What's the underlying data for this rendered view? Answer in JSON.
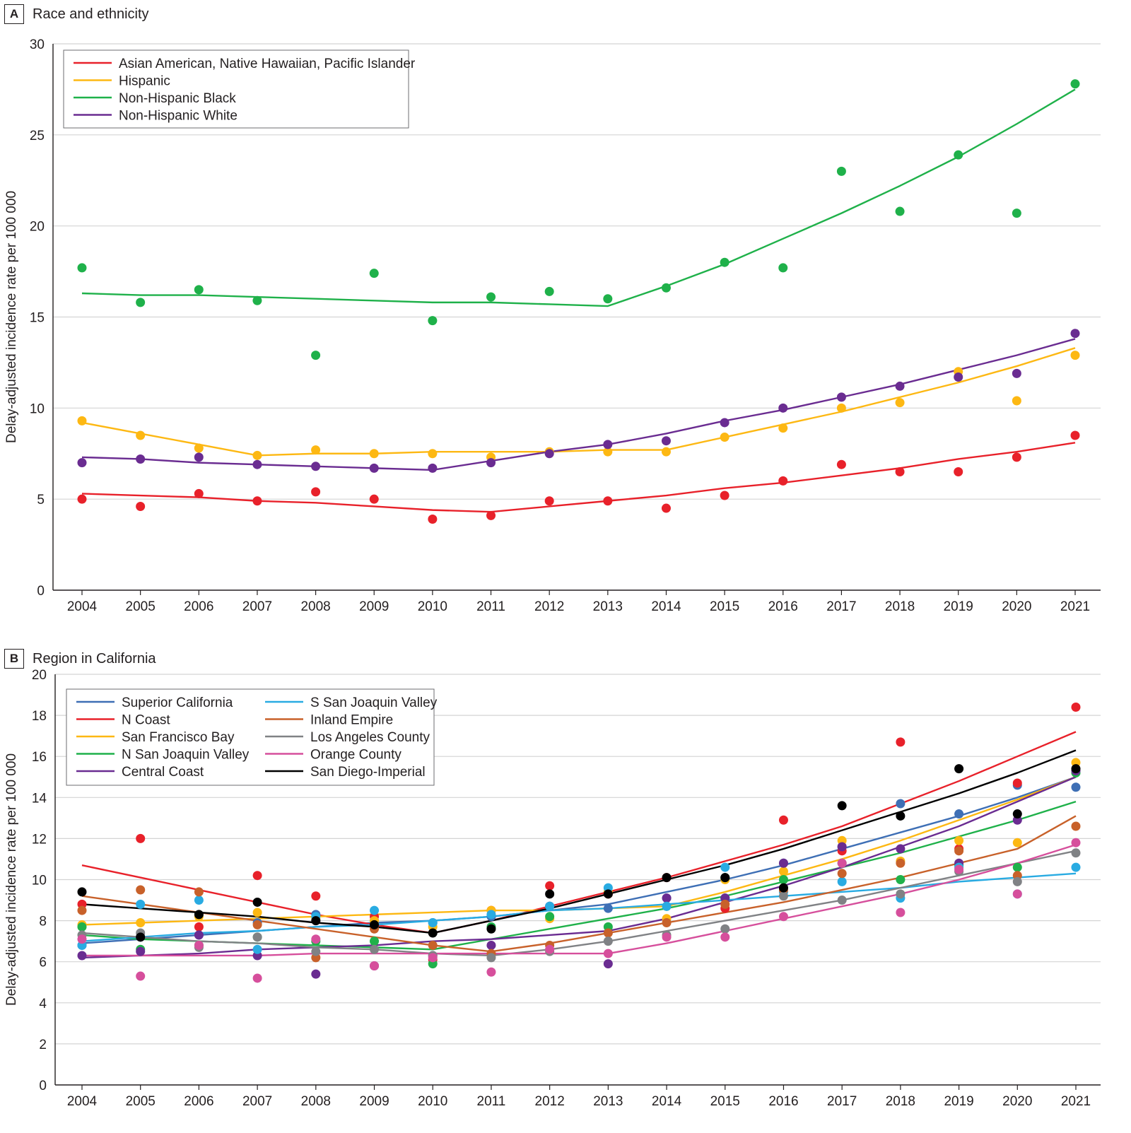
{
  "chart_data": [
    {
      "panel_letter": "A",
      "title": "Race and ethnicity",
      "type": "scatter",
      "ylabel": "Delay-adjusted incidence rate per 100 000",
      "xlabel": "",
      "ylim": [
        0,
        30
      ],
      "yticks": [
        0,
        5,
        10,
        15,
        20,
        25,
        30
      ],
      "x": [
        2004,
        2005,
        2006,
        2007,
        2008,
        2009,
        2010,
        2011,
        2012,
        2013,
        2014,
        2015,
        2016,
        2017,
        2018,
        2019,
        2020,
        2021
      ],
      "grid": "horizontal",
      "legend_position": "top-left",
      "series": [
        {
          "name": "Asian American, Native Hawaiian, Pacific Islander",
          "color": "#e8212a",
          "points": [
            5.0,
            4.6,
            5.3,
            4.9,
            5.4,
            5.0,
            3.9,
            4.1,
            4.9,
            4.9,
            4.5,
            5.2,
            6.0,
            6.9,
            6.5,
            6.5,
            7.3,
            8.5
          ],
          "trend": [
            5.3,
            5.2,
            5.1,
            4.9,
            4.8,
            4.6,
            4.4,
            4.3,
            4.6,
            4.9,
            5.2,
            5.6,
            5.9,
            6.3,
            6.7,
            7.2,
            7.6,
            8.1
          ]
        },
        {
          "name": "Hispanic",
          "color": "#fdb813",
          "points": [
            9.3,
            8.5,
            7.8,
            7.4,
            7.7,
            7.5,
            7.5,
            7.3,
            7.6,
            7.6,
            7.6,
            8.4,
            8.9,
            10.0,
            10.3,
            12.0,
            10.4,
            12.9
          ],
          "trend": [
            9.2,
            8.6,
            8.0,
            7.4,
            7.5,
            7.5,
            7.6,
            7.6,
            7.6,
            7.7,
            7.7,
            8.4,
            9.1,
            9.8,
            10.6,
            11.4,
            12.3,
            13.3
          ]
        },
        {
          "name": "Non-Hispanic Black",
          "color": "#1fb14a",
          "points": [
            17.7,
            15.8,
            16.5,
            15.9,
            12.9,
            17.4,
            14.8,
            16.1,
            16.4,
            16.0,
            16.6,
            18.0,
            17.7,
            23.0,
            20.8,
            23.9,
            20.7,
            27.8
          ],
          "trend": [
            16.3,
            16.2,
            16.2,
            16.1,
            16.0,
            15.9,
            15.8,
            15.8,
            15.7,
            15.6,
            16.7,
            17.9,
            19.3,
            20.7,
            22.2,
            23.8,
            25.6,
            27.5
          ]
        },
        {
          "name": "Non-Hispanic White",
          "color": "#6a2c91",
          "points": [
            7.0,
            7.2,
            7.3,
            6.9,
            6.8,
            6.7,
            6.7,
            7.0,
            7.5,
            8.0,
            8.2,
            9.2,
            10.0,
            10.6,
            11.2,
            11.7,
            11.9,
            14.1
          ],
          "trend": [
            7.3,
            7.2,
            7.0,
            6.9,
            6.8,
            6.7,
            6.6,
            7.1,
            7.6,
            8.0,
            8.6,
            9.3,
            9.9,
            10.6,
            11.3,
            12.1,
            12.9,
            13.8
          ]
        }
      ]
    },
    {
      "panel_letter": "B",
      "title": "Region in California",
      "type": "scatter",
      "ylabel": "Delay-adjusted incidence rate per 100 000",
      "xlabel": "",
      "ylim": [
        0,
        20
      ],
      "yticks": [
        0,
        2,
        4,
        6,
        8,
        10,
        12,
        14,
        16,
        18,
        20
      ],
      "x": [
        2004,
        2005,
        2006,
        2007,
        2008,
        2009,
        2010,
        2011,
        2012,
        2013,
        2014,
        2015,
        2016,
        2017,
        2018,
        2019,
        2020,
        2021
      ],
      "grid": "horizontal",
      "legend_position": "top-left",
      "series": [
        {
          "name": "Superior California",
          "color": "#3e6fb5",
          "points": [
            6.8,
            7.2,
            7.3,
            7.9,
            8.3,
            8.0,
            7.9,
            8.2,
            8.7,
            8.6,
            9.1,
            9.1,
            10.8,
            11.6,
            13.7,
            13.2,
            14.6,
            14.5
          ],
          "trend": [
            6.9,
            7.1,
            7.3,
            7.5,
            7.7,
            7.9,
            8.0,
            8.2,
            8.5,
            8.8,
            9.4,
            10.0,
            10.7,
            11.5,
            12.3,
            13.1,
            14.0,
            15.0
          ]
        },
        {
          "name": "N Coast",
          "color": "#e8212a",
          "points": [
            8.8,
            12.0,
            7.7,
            10.2,
            9.2,
            8.2,
            6.1,
            8.5,
            9.7,
            9.3,
            10.1,
            8.6,
            12.9,
            11.4,
            16.7,
            11.5,
            14.7,
            18.4
          ],
          "trend": [
            10.7,
            10.1,
            9.5,
            8.9,
            8.3,
            7.8,
            7.4,
            8.0,
            8.7,
            9.4,
            10.1,
            10.9,
            11.7,
            12.6,
            13.7,
            14.8,
            16.0,
            17.2
          ]
        },
        {
          "name": "San Francisco Bay",
          "color": "#fdb813",
          "points": [
            7.8,
            7.9,
            8.2,
            8.4,
            8.1,
            8.0,
            7.7,
            8.5,
            8.1,
            9.4,
            8.1,
            10.0,
            10.4,
            11.9,
            10.9,
            11.9,
            11.8,
            15.7
          ],
          "trend": [
            7.8,
            7.9,
            8.0,
            8.1,
            8.2,
            8.3,
            8.4,
            8.5,
            8.5,
            8.6,
            8.7,
            9.4,
            10.2,
            11.0,
            11.9,
            12.9,
            13.9,
            15.0
          ]
        },
        {
          "name": "N San Joaquin Valley",
          "color": "#1fb14a",
          "points": [
            7.7,
            6.6,
            6.8,
            7.2,
            7.0,
            7.0,
            5.9,
            7.7,
            8.2,
            7.7,
            8.7,
            10.1,
            10.0,
            10.8,
            10.0,
            10.7,
            10.6,
            15.2
          ],
          "trend": [
            7.3,
            7.1,
            7.0,
            6.9,
            6.8,
            6.7,
            6.6,
            7.1,
            7.6,
            8.1,
            8.6,
            9.2,
            9.9,
            10.6,
            11.3,
            12.1,
            12.9,
            13.8
          ]
        },
        {
          "name": "Central Coast",
          "color": "#6a2c91",
          "points": [
            6.3,
            6.5,
            7.3,
            6.3,
            5.4,
            5.8,
            6.3,
            6.8,
            8.7,
            5.9,
            9.1,
            9.1,
            10.8,
            11.6,
            11.5,
            10.8,
            12.9,
            15.3
          ],
          "trend": [
            6.2,
            6.3,
            6.4,
            6.6,
            6.7,
            6.8,
            7.0,
            7.1,
            7.3,
            7.5,
            8.1,
            8.9,
            9.7,
            10.6,
            11.6,
            12.6,
            13.8,
            15.0
          ]
        },
        {
          "name": "S San Joaquin Valley",
          "color": "#29abe2",
          "points": [
            6.8,
            8.8,
            9.0,
            6.6,
            8.2,
            8.5,
            7.9,
            8.3,
            8.7,
            9.6,
            8.7,
            10.6,
            9.4,
            9.9,
            9.1,
            10.6,
            9.3,
            10.6
          ],
          "trend": [
            7.0,
            7.2,
            7.4,
            7.5,
            7.7,
            7.8,
            8.0,
            8.2,
            8.5,
            8.6,
            8.8,
            9.0,
            9.2,
            9.4,
            9.6,
            9.9,
            10.1,
            10.3
          ]
        },
        {
          "name": "Inland Empire",
          "color": "#c8612a",
          "points": [
            8.5,
            9.5,
            9.4,
            7.8,
            6.2,
            7.6,
            6.8,
            6.4,
            6.8,
            7.4,
            7.9,
            8.8,
            9.5,
            10.3,
            10.8,
            11.4,
            10.2,
            12.6
          ],
          "trend": [
            9.2,
            8.8,
            8.4,
            8.0,
            7.6,
            7.2,
            6.8,
            6.5,
            6.9,
            7.4,
            7.9,
            8.4,
            8.9,
            9.5,
            10.1,
            10.8,
            11.5,
            13.1
          ]
        },
        {
          "name": "Los Angeles County",
          "color": "#808285",
          "points": [
            7.3,
            7.4,
            6.7,
            7.2,
            6.5,
            6.6,
            6.3,
            6.2,
            6.5,
            7.0,
            7.3,
            7.6,
            9.2,
            9.0,
            9.3,
            10.4,
            9.9,
            11.3
          ],
          "trend": [
            7.4,
            7.2,
            7.0,
            6.9,
            6.7,
            6.6,
            6.4,
            6.3,
            6.6,
            7.0,
            7.5,
            8.0,
            8.5,
            9.0,
            9.6,
            10.2,
            10.8,
            11.4
          ]
        },
        {
          "name": "Orange County",
          "color": "#d64f9c",
          "points": [
            7.1,
            5.3,
            6.8,
            5.2,
            7.1,
            5.8,
            6.2,
            5.5,
            6.6,
            6.4,
            7.2,
            7.2,
            8.2,
            10.8,
            8.4,
            10.5,
            9.3,
            11.8
          ],
          "trend": [
            6.3,
            6.3,
            6.3,
            6.3,
            6.4,
            6.4,
            6.4,
            6.4,
            6.4,
            6.4,
            6.9,
            7.5,
            8.1,
            8.7,
            9.3,
            10.0,
            10.8,
            11.7
          ]
        },
        {
          "name": "San Diego-Imperial",
          "color": "#000000",
          "points": [
            9.4,
            7.2,
            8.3,
            8.9,
            8.0,
            7.8,
            7.4,
            7.6,
            9.3,
            9.3,
            10.1,
            10.1,
            9.6,
            13.6,
            13.1,
            15.4,
            13.2,
            15.4
          ],
          "trend": [
            8.8,
            8.6,
            8.4,
            8.2,
            7.9,
            7.7,
            7.4,
            8.0,
            8.6,
            9.3,
            10.0,
            10.7,
            11.5,
            12.4,
            13.3,
            14.2,
            15.2,
            16.3
          ]
        }
      ]
    }
  ]
}
